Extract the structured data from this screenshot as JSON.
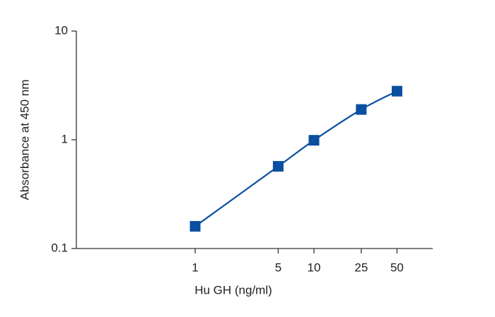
{
  "chart_data": {
    "type": "line",
    "x_label": "Hu GH (ng/ml)",
    "y_label": "Absorbance at 450 nm",
    "x": [
      1,
      5,
      10,
      25,
      50
    ],
    "values": [
      0.16,
      0.57,
      0.99,
      1.9,
      2.8
    ],
    "color": "#0a4fa0",
    "log_x": true,
    "log_y": true,
    "xlim": [
      0.1,
      100
    ],
    "xticks": [
      1,
      5,
      10,
      25,
      50
    ],
    "ylim": [
      0.1,
      10
    ],
    "yticks": [
      0.1,
      1,
      10
    ],
    "grid": false
  }
}
